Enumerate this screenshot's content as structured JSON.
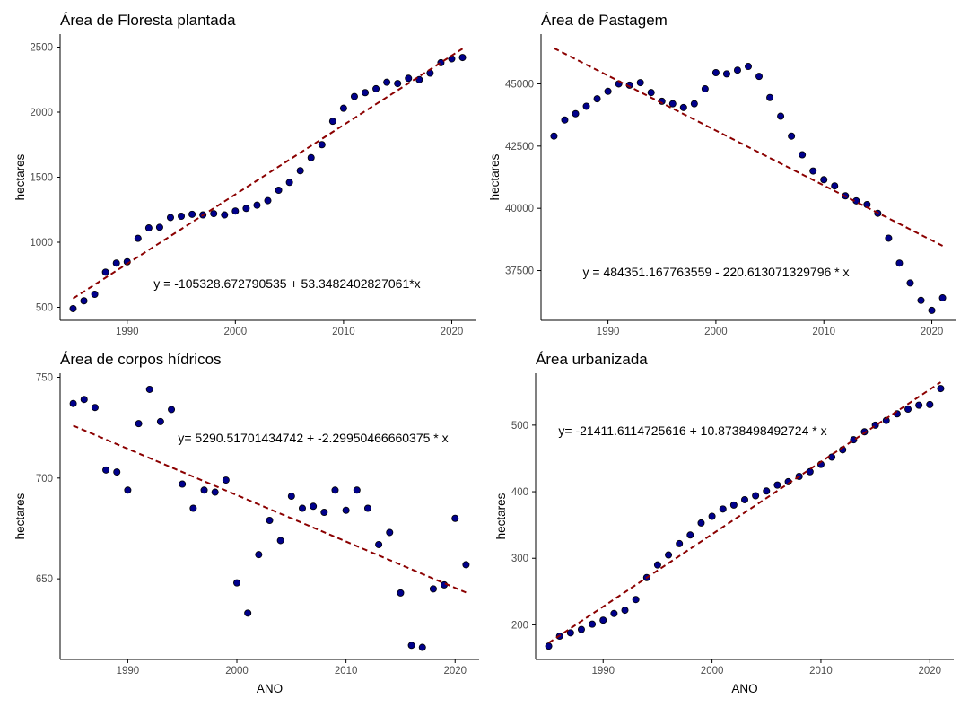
{
  "colors": {
    "points": "#00008B",
    "trend": "#8B0000",
    "axis": "#000000"
  },
  "chart_data": [
    {
      "type": "scatter",
      "title": "Área de  Floresta plantada",
      "xlabel": "",
      "ylabel": "hectares",
      "equation": "y = -105328.672790535 + 53.3482402827061*x",
      "xlim": [
        1983.8,
        2022.2
      ],
      "ylim": [
        400,
        2600
      ],
      "xticks": [
        1990,
        2000,
        2010,
        2020
      ],
      "yticks": [
        500,
        1000,
        1500,
        2000,
        2500
      ],
      "ytick_labels": [
        "500",
        "1000",
        "1500",
        "2000",
        "2500"
      ],
      "trend": {
        "intercept": -105328.672790535,
        "slope": 53.3482402827061,
        "x_range": [
          1985,
          2021
        ]
      },
      "x": [
        1985,
        1986,
        1987,
        1988,
        1989,
        1990,
        1991,
        1992,
        1993,
        1994,
        1995,
        1996,
        1997,
        1998,
        1999,
        2000,
        2001,
        2002,
        2003,
        2004,
        2005,
        2006,
        2007,
        2008,
        2009,
        2010,
        2011,
        2012,
        2013,
        2014,
        2015,
        2016,
        2017,
        2018,
        2019,
        2020,
        2021
      ],
      "y": [
        490,
        550,
        600,
        770,
        840,
        850,
        1030,
        1110,
        1115,
        1190,
        1200,
        1215,
        1210,
        1220,
        1210,
        1240,
        1260,
        1285,
        1320,
        1400,
        1460,
        1550,
        1650,
        1750,
        1930,
        2030,
        2120,
        2150,
        2180,
        2230,
        2220,
        2260,
        2250,
        2300,
        2380,
        2410,
        2420
      ]
    },
    {
      "type": "scatter",
      "title": "Área de  Pastagem",
      "xlabel": "",
      "ylabel": "hectares",
      "equation": "y = 484351.167763559 - 220.613071329796 * x",
      "xlim": [
        1983.8,
        2022.2
      ],
      "ylim": [
        35500,
        47000
      ],
      "xticks": [
        1990,
        2000,
        2010,
        2020
      ],
      "yticks": [
        37500,
        40000,
        42500,
        45000
      ],
      "ytick_labels": [
        "37500",
        "40000",
        "42500",
        "45000"
      ],
      "trend": {
        "intercept": 484351.167763559,
        "slope": -220.613071329796,
        "x_range": [
          1985,
          2021
        ]
      },
      "x": [
        1985,
        1986,
        1987,
        1988,
        1989,
        1990,
        1991,
        1992,
        1993,
        1994,
        1995,
        1996,
        1997,
        1998,
        1999,
        2000,
        2001,
        2002,
        2003,
        2004,
        2005,
        2006,
        2007,
        2008,
        2009,
        2010,
        2011,
        2012,
        2013,
        2014,
        2015,
        2016,
        2017,
        2018,
        2019,
        2020,
        2021
      ],
      "y": [
        42900,
        43550,
        43800,
        44100,
        44400,
        44700,
        45000,
        44950,
        45050,
        44650,
        44300,
        44200,
        44050,
        44200,
        44800,
        45450,
        45400,
        45550,
        45700,
        45300,
        44450,
        43700,
        42900,
        42150,
        41500,
        41150,
        40900,
        40500,
        40300,
        40150,
        39800,
        38800,
        37800,
        37000,
        36300,
        35900,
        36400
      ]
    },
    {
      "type": "scatter",
      "title": "Área de  corpos hídricos",
      "xlabel": "ANO",
      "ylabel": "hectares",
      "equation": "y= 5290.51701434742 + -2.29950466660375 * x",
      "xlim": [
        1983.8,
        2022.2
      ],
      "ylim": [
        610,
        752
      ],
      "xticks": [
        1990,
        2000,
        2010,
        2020
      ],
      "yticks": [
        650,
        700,
        750
      ],
      "ytick_labels": [
        "650",
        "700",
        "750"
      ],
      "trend": {
        "intercept": 5290.51701434742,
        "slope": -2.29950466660375,
        "x_range": [
          1985,
          2021
        ]
      },
      "x": [
        1985,
        1986,
        1987,
        1988,
        1989,
        1990,
        1991,
        1992,
        1993,
        1994,
        1995,
        1996,
        1997,
        1998,
        1999,
        2000,
        2001,
        2002,
        2003,
        2004,
        2005,
        2006,
        2007,
        2008,
        2009,
        2010,
        2011,
        2012,
        2013,
        2014,
        2015,
        2016,
        2017,
        2018,
        2019,
        2020,
        2021
      ],
      "y": [
        737,
        739,
        735,
        704,
        703,
        694,
        727,
        744,
        728,
        734,
        697,
        685,
        694,
        693,
        699,
        648,
        633,
        662,
        679,
        669,
        691,
        685,
        686,
        683,
        694,
        684,
        694,
        685,
        667,
        673,
        643,
        617,
        616,
        645,
        647,
        680,
        657
      ]
    },
    {
      "type": "scatter",
      "title": "Área  urbanizada",
      "xlabel": "ANO",
      "ylabel": "hectares",
      "equation": "y= -21411.6114725616 + 10.8738498492724 * x",
      "xlim": [
        1983.8,
        2022.2
      ],
      "ylim": [
        148,
        578
      ],
      "xticks": [
        1990,
        2000,
        2010,
        2020
      ],
      "yticks": [
        200,
        300,
        400,
        500
      ],
      "ytick_labels": [
        "200",
        "300",
        "400",
        "500"
      ],
      "trend": {
        "intercept": -21411.6114725616,
        "slope": 10.8738498492724,
        "x_range": [
          1985,
          2021
        ]
      },
      "x": [
        1985,
        1986,
        1987,
        1988,
        1989,
        1990,
        1991,
        1992,
        1993,
        1994,
        1995,
        1996,
        1997,
        1998,
        1999,
        2000,
        2001,
        2002,
        2003,
        2004,
        2005,
        2006,
        2007,
        2008,
        2009,
        2010,
        2011,
        2012,
        2013,
        2014,
        2015,
        2016,
        2017,
        2018,
        2019,
        2020,
        2021
      ],
      "y": [
        168,
        183,
        188,
        193,
        201,
        207,
        217,
        222,
        238,
        271,
        290,
        305,
        322,
        335,
        353,
        363,
        374,
        380,
        388,
        394,
        401,
        410,
        415,
        423,
        430,
        441,
        452,
        463,
        478,
        490,
        500,
        507,
        517,
        524,
        530,
        531,
        555
      ]
    }
  ]
}
